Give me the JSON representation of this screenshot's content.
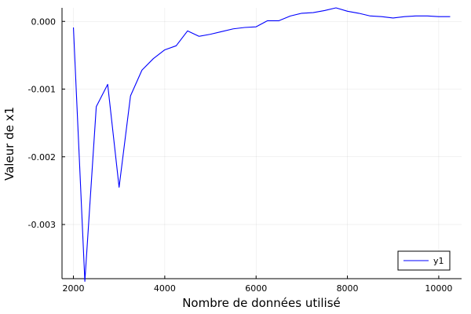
{
  "chart_data": {
    "type": "line",
    "title": "",
    "xlabel": "Nombre de données utilisé",
    "ylabel": "Valeur de x1",
    "xlim": [
      1750,
      10500
    ],
    "ylim": [
      -0.0038,
      0.0002
    ],
    "x_ticks": [
      2000,
      4000,
      6000,
      8000,
      10000
    ],
    "x_tick_labels": [
      "2000",
      "4000",
      "6000",
      "8000",
      "10000"
    ],
    "y_ticks": [
      0.0,
      -0.001,
      -0.002,
      -0.003
    ],
    "y_tick_labels": [
      "0.000",
      "-0.001",
      "-0.002",
      "-0.003"
    ],
    "grid": true,
    "legend_position": "bottom-right",
    "series": [
      {
        "name": "y1",
        "color": "#0000ff",
        "x": [
          2000,
          2250,
          2500,
          2750,
          3000,
          3250,
          3500,
          3750,
          4000,
          4250,
          4500,
          4750,
          5000,
          5250,
          5500,
          5750,
          6000,
          6250,
          6500,
          6750,
          7000,
          7250,
          7500,
          7750,
          8000,
          8250,
          8500,
          8750,
          9000,
          9250,
          9500,
          9750,
          10000,
          10250
        ],
        "y": [
          -9e-05,
          -0.00384,
          -0.00126,
          -0.00093,
          -0.00245,
          -0.0011,
          -0.00072,
          -0.00055,
          -0.00042,
          -0.00036,
          -0.00014,
          -0.00022,
          -0.00019,
          -0.00015,
          -0.00011,
          -9e-05,
          -8e-05,
          1e-05,
          1e-05,
          8e-05,
          0.00012,
          0.00013,
          0.00016,
          0.0002,
          0.00015,
          0.00012,
          8e-05,
          7e-05,
          5e-05,
          7e-05,
          8e-05,
          8e-05,
          7e-05,
          7e-05
        ]
      }
    ]
  }
}
